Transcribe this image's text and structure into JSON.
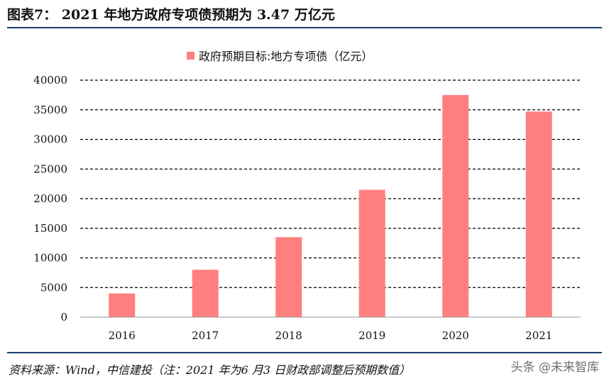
{
  "figure": {
    "title": "图表7：  2021 年地方政府专项债预期为 3.47 万亿元",
    "source": "资料来源：Wind，中信建投（注：2021 年为6 月3 日财政部调整后预期数值）",
    "watermark": "头条 @未来智库"
  },
  "chart_data": {
    "type": "bar",
    "categories": [
      "2016",
      "2017",
      "2018",
      "2019",
      "2020",
      "2021"
    ],
    "series": [
      {
        "name": "政府预期目标:地方专项债（亿元）",
        "values": [
          4000,
          8000,
          13500,
          21500,
          37500,
          34700
        ]
      }
    ],
    "ylim": [
      0,
      40000
    ],
    "yticks": [
      0,
      5000,
      10000,
      15000,
      20000,
      25000,
      30000,
      35000,
      40000
    ],
    "grid": true,
    "legend_position": "top-center",
    "bar_color": "#ff7f7f"
  }
}
